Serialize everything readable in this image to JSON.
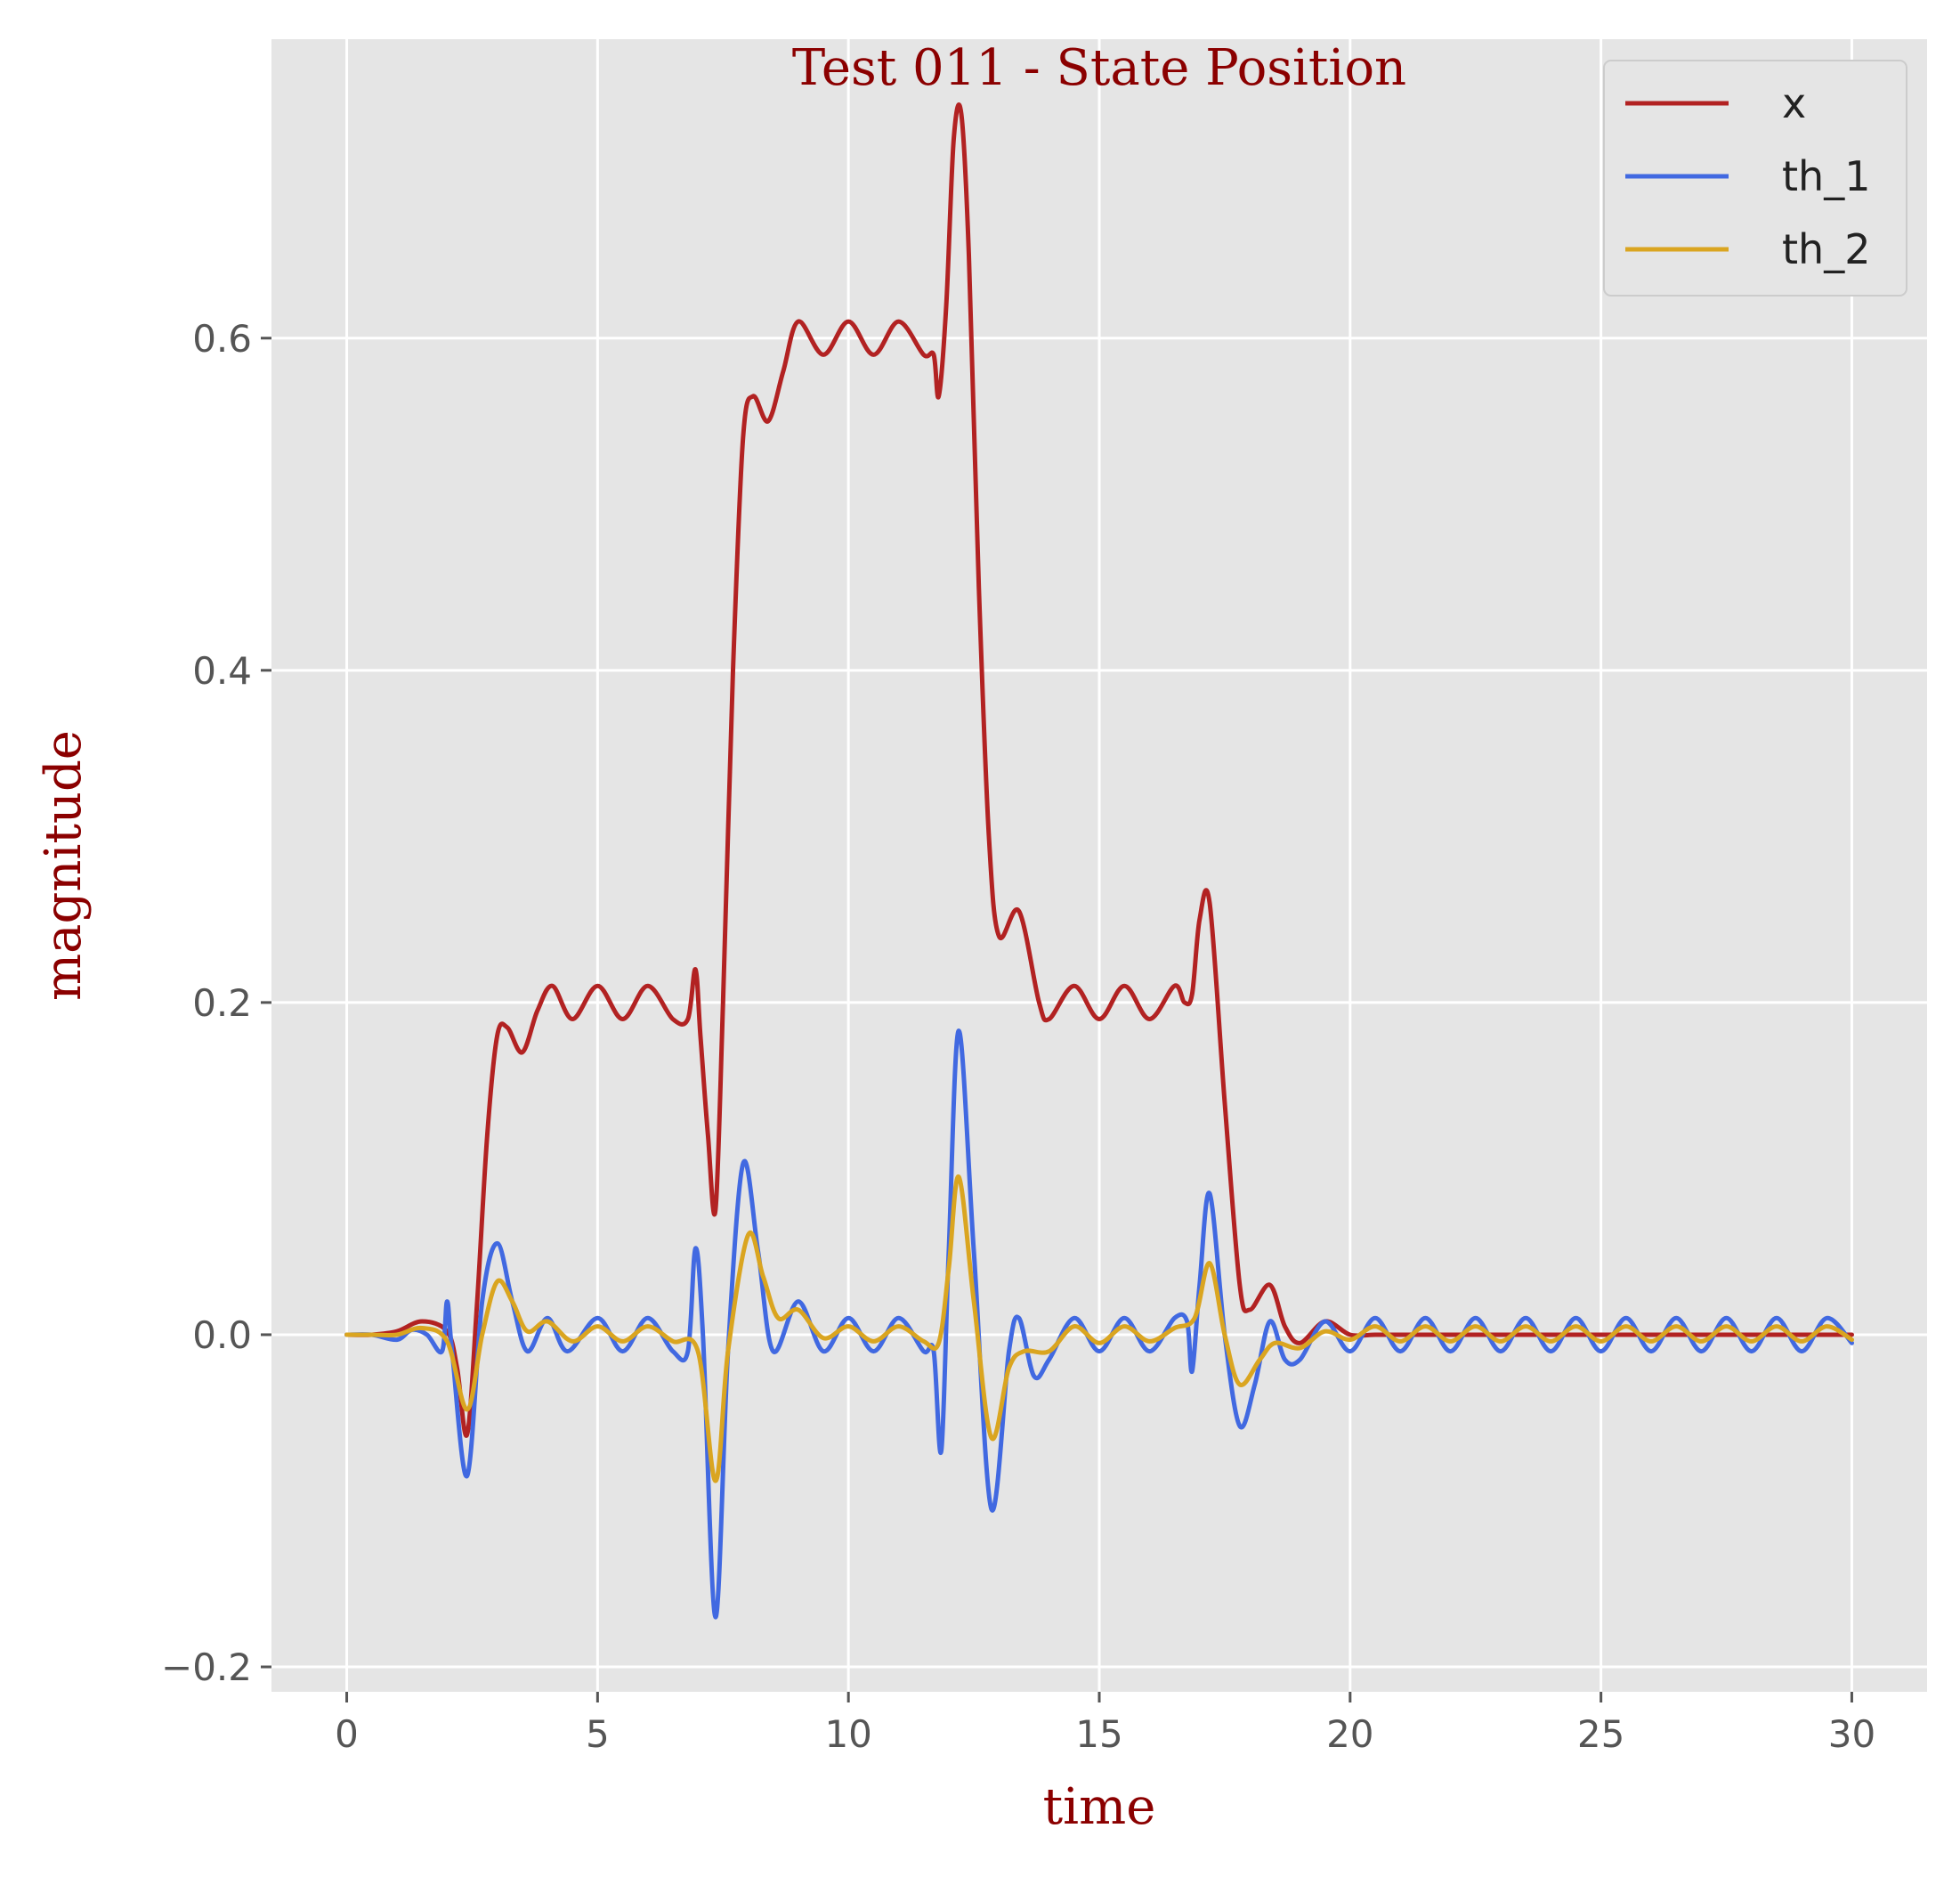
{
  "chart_data": {
    "type": "line",
    "title": "Test 011 - State Position",
    "xlabel": "time",
    "ylabel": "magnitude",
    "xlim": [
      -1.5,
      31.5
    ],
    "ylim": [
      -0.215,
      0.78
    ],
    "xticks": [
      0,
      5,
      10,
      15,
      20,
      25,
      30
    ],
    "xtick_labels": [
      "0",
      "5",
      "10",
      "15",
      "20",
      "25",
      "30"
    ],
    "yticks": [
      -0.2,
      0.0,
      0.2,
      0.4,
      0.6
    ],
    "ytick_labels": [
      "−0.2",
      "0.0",
      "0.2",
      "0.4",
      "0.6"
    ],
    "grid": true,
    "legend_position": "top-right",
    "colors": {
      "x": "#b22222",
      "th_1": "#4169e1",
      "th_2": "#daa520",
      "background": "#e5e5e5",
      "grid": "#ffffff"
    },
    "series": [
      {
        "name": "x",
        "color": "#b22222",
        "points": [
          [
            0,
            0
          ],
          [
            0.5,
            0
          ],
          [
            1.0,
            0.002
          ],
          [
            1.5,
            0.008
          ],
          [
            2.0,
            0.002
          ],
          [
            2.2,
            -0.02
          ],
          [
            2.4,
            -0.06
          ],
          [
            2.6,
            0.02
          ],
          [
            2.8,
            0.12
          ],
          [
            3.0,
            0.18
          ],
          [
            3.2,
            0.185
          ],
          [
            3.5,
            0.17
          ],
          [
            3.8,
            0.195
          ],
          [
            4.1,
            0.21
          ],
          [
            4.5,
            0.19
          ],
          [
            5.0,
            0.21
          ],
          [
            5.5,
            0.19
          ],
          [
            6.0,
            0.21
          ],
          [
            6.5,
            0.19
          ],
          [
            6.8,
            0.19
          ],
          [
            6.95,
            0.22
          ],
          [
            7.05,
            0.18
          ],
          [
            7.2,
            0.12
          ],
          [
            7.35,
            0.075
          ],
          [
            7.5,
            0.2
          ],
          [
            7.7,
            0.4
          ],
          [
            7.9,
            0.54
          ],
          [
            8.1,
            0.565
          ],
          [
            8.4,
            0.55
          ],
          [
            8.7,
            0.58
          ],
          [
            9.0,
            0.61
          ],
          [
            9.5,
            0.59
          ],
          [
            10.0,
            0.61
          ],
          [
            10.5,
            0.59
          ],
          [
            11.0,
            0.61
          ],
          [
            11.5,
            0.59
          ],
          [
            11.7,
            0.59
          ],
          [
            11.8,
            0.565
          ],
          [
            11.95,
            0.62
          ],
          [
            12.1,
            0.72
          ],
          [
            12.25,
            0.735
          ],
          [
            12.4,
            0.65
          ],
          [
            12.6,
            0.45
          ],
          [
            12.8,
            0.3
          ],
          [
            13.0,
            0.24
          ],
          [
            13.4,
            0.255
          ],
          [
            13.8,
            0.2
          ],
          [
            14.0,
            0.19
          ],
          [
            14.5,
            0.21
          ],
          [
            15.0,
            0.19
          ],
          [
            15.5,
            0.21
          ],
          [
            16.0,
            0.19
          ],
          [
            16.5,
            0.21
          ],
          [
            16.7,
            0.2
          ],
          [
            16.85,
            0.205
          ],
          [
            17.0,
            0.25
          ],
          [
            17.2,
            0.26
          ],
          [
            17.5,
            0.14
          ],
          [
            17.8,
            0.03
          ],
          [
            18.0,
            0.015
          ],
          [
            18.4,
            0.03
          ],
          [
            18.7,
            0.005
          ],
          [
            19.0,
            -0.005
          ],
          [
            19.5,
            0.008
          ],
          [
            20,
            0
          ],
          [
            20.5,
            0
          ],
          [
            21,
            0
          ],
          [
            21.5,
            0
          ],
          [
            22,
            0
          ],
          [
            22.5,
            0
          ],
          [
            23,
            0
          ],
          [
            23.5,
            0
          ],
          [
            24,
            0
          ],
          [
            24.5,
            0
          ],
          [
            25,
            0
          ],
          [
            25.5,
            0
          ],
          [
            26,
            0
          ],
          [
            26.5,
            0
          ],
          [
            27,
            0
          ],
          [
            27.5,
            0
          ],
          [
            28,
            0
          ],
          [
            28.5,
            0
          ],
          [
            29,
            0
          ],
          [
            29.5,
            0
          ],
          [
            30,
            0
          ]
        ]
      },
      {
        "name": "th_1",
        "color": "#4169e1",
        "points": [
          [
            0,
            0
          ],
          [
            0.5,
            0
          ],
          [
            1.0,
            -0.003
          ],
          [
            1.3,
            0.003
          ],
          [
            1.6,
            0.0
          ],
          [
            1.9,
            -0.01
          ],
          [
            2.0,
            0.02
          ],
          [
            2.1,
            -0.01
          ],
          [
            2.4,
            -0.085
          ],
          [
            2.7,
            0.02
          ],
          [
            3.0,
            0.055
          ],
          [
            3.3,
            0.02
          ],
          [
            3.6,
            -0.01
          ],
          [
            4.0,
            0.01
          ],
          [
            4.4,
            -0.01
          ],
          [
            5.0,
            0.01
          ],
          [
            5.5,
            -0.01
          ],
          [
            6.0,
            0.01
          ],
          [
            6.5,
            -0.01
          ],
          [
            6.8,
            -0.01
          ],
          [
            6.95,
            0.052
          ],
          [
            7.1,
            0.0
          ],
          [
            7.35,
            -0.17
          ],
          [
            7.6,
            -0.01
          ],
          [
            7.9,
            0.103
          ],
          [
            8.2,
            0.05
          ],
          [
            8.5,
            -0.01
          ],
          [
            9.0,
            0.02
          ],
          [
            9.5,
            -0.01
          ],
          [
            10.0,
            0.01
          ],
          [
            10.5,
            -0.01
          ],
          [
            11.0,
            0.01
          ],
          [
            11.5,
            -0.01
          ],
          [
            11.7,
            -0.01
          ],
          [
            11.85,
            -0.07
          ],
          [
            12.0,
            0.05
          ],
          [
            12.2,
            0.183
          ],
          [
            12.5,
            0.05
          ],
          [
            12.85,
            -0.105
          ],
          [
            13.2,
            -0.01
          ],
          [
            13.4,
            0.01
          ],
          [
            13.7,
            -0.025
          ],
          [
            14.0,
            -0.015
          ],
          [
            14.5,
            0.01
          ],
          [
            15.0,
            -0.01
          ],
          [
            15.5,
            0.01
          ],
          [
            16.0,
            -0.01
          ],
          [
            16.5,
            0.01
          ],
          [
            16.75,
            0.008
          ],
          [
            16.85,
            -0.022
          ],
          [
            17.0,
            0.03
          ],
          [
            17.2,
            0.085
          ],
          [
            17.5,
            0.0
          ],
          [
            17.8,
            -0.055
          ],
          [
            18.1,
            -0.03
          ],
          [
            18.4,
            0.008
          ],
          [
            18.7,
            -0.015
          ],
          [
            19.0,
            -0.015
          ],
          [
            19.5,
            0.008
          ],
          [
            20.0,
            -0.01
          ],
          [
            20.5,
            0.01
          ],
          [
            21.0,
            -0.01
          ],
          [
            21.5,
            0.01
          ],
          [
            22.0,
            -0.01
          ],
          [
            22.5,
            0.01
          ],
          [
            23.0,
            -0.01
          ],
          [
            23.5,
            0.01
          ],
          [
            24.0,
            -0.01
          ],
          [
            24.5,
            0.01
          ],
          [
            25.0,
            -0.01
          ],
          [
            25.5,
            0.01
          ],
          [
            26.0,
            -0.01
          ],
          [
            26.5,
            0.01
          ],
          [
            27.0,
            -0.01
          ],
          [
            27.5,
            0.01
          ],
          [
            28.0,
            -0.01
          ],
          [
            28.5,
            0.01
          ],
          [
            29.0,
            -0.01
          ],
          [
            29.5,
            0.01
          ],
          [
            30.0,
            -0.005
          ]
        ]
      },
      {
        "name": "th_2",
        "color": "#daa520",
        "points": [
          [
            0,
            0
          ],
          [
            0.5,
            0
          ],
          [
            1.0,
            0.0
          ],
          [
            1.5,
            0.004
          ],
          [
            2.0,
            -0.004
          ],
          [
            2.4,
            -0.045
          ],
          [
            2.7,
            0.0
          ],
          [
            3.0,
            0.032
          ],
          [
            3.3,
            0.02
          ],
          [
            3.6,
            0.002
          ],
          [
            4.0,
            0.008
          ],
          [
            4.5,
            -0.004
          ],
          [
            5.0,
            0.005
          ],
          [
            5.5,
            -0.004
          ],
          [
            6.0,
            0.005
          ],
          [
            6.5,
            -0.004
          ],
          [
            7.0,
            -0.01
          ],
          [
            7.35,
            -0.088
          ],
          [
            7.6,
            -0.01
          ],
          [
            8.0,
            0.06
          ],
          [
            8.3,
            0.035
          ],
          [
            8.6,
            0.01
          ],
          [
            9.0,
            0.015
          ],
          [
            9.5,
            -0.002
          ],
          [
            10.0,
            0.005
          ],
          [
            10.5,
            -0.004
          ],
          [
            11.0,
            0.005
          ],
          [
            11.5,
            -0.004
          ],
          [
            11.8,
            -0.005
          ],
          [
            12.0,
            0.04
          ],
          [
            12.2,
            0.095
          ],
          [
            12.5,
            0.02
          ],
          [
            12.85,
            -0.062
          ],
          [
            13.2,
            -0.02
          ],
          [
            13.5,
            -0.01
          ],
          [
            14.0,
            -0.01
          ],
          [
            14.5,
            0.005
          ],
          [
            15.0,
            -0.005
          ],
          [
            15.5,
            0.005
          ],
          [
            16.0,
            -0.004
          ],
          [
            16.5,
            0.004
          ],
          [
            16.9,
            0.01
          ],
          [
            17.2,
            0.043
          ],
          [
            17.5,
            0.0
          ],
          [
            17.8,
            -0.03
          ],
          [
            18.2,
            -0.015
          ],
          [
            18.5,
            -0.005
          ],
          [
            19.0,
            -0.008
          ],
          [
            19.5,
            0.002
          ],
          [
            20.0,
            -0.003
          ],
          [
            20.5,
            0.005
          ],
          [
            21.0,
            -0.004
          ],
          [
            21.5,
            0.005
          ],
          [
            22.0,
            -0.004
          ],
          [
            22.5,
            0.005
          ],
          [
            23.0,
            -0.004
          ],
          [
            23.5,
            0.005
          ],
          [
            24.0,
            -0.004
          ],
          [
            24.5,
            0.005
          ],
          [
            25.0,
            -0.004
          ],
          [
            25.5,
            0.005
          ],
          [
            26.0,
            -0.004
          ],
          [
            26.5,
            0.005
          ],
          [
            27.0,
            -0.004
          ],
          [
            27.5,
            0.005
          ],
          [
            28.0,
            -0.004
          ],
          [
            28.5,
            0.005
          ],
          [
            29.0,
            -0.004
          ],
          [
            29.5,
            0.005
          ],
          [
            30.0,
            -0.003
          ]
        ]
      }
    ]
  }
}
